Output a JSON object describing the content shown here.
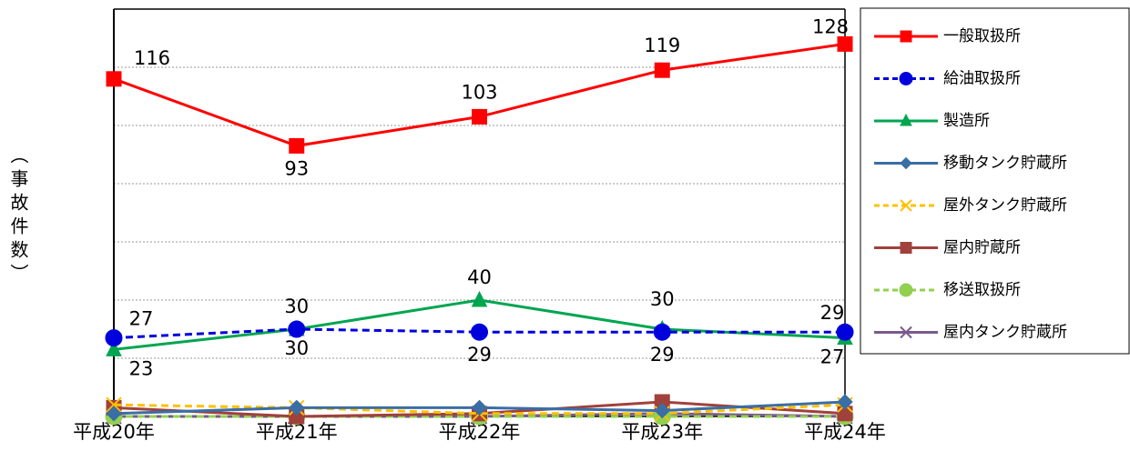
{
  "chart_data": {
    "type": "line",
    "y_label": "（事故件数）",
    "categories": [
      "平成20年",
      "平成21年",
      "平成22年",
      "平成23年",
      "平成24年"
    ],
    "ylim": [
      0,
      140
    ],
    "yticks": [
      0,
      20,
      40,
      60,
      80,
      100,
      120,
      140
    ],
    "grid": true,
    "legend": "right",
    "series": [
      {
        "name": "一般取扱所",
        "color": "#ff0000",
        "marker": "square",
        "dash": false,
        "labels": true,
        "values": [
          116,
          93,
          103,
          119,
          128
        ]
      },
      {
        "name": "給油取扱所",
        "color": "#0000dd",
        "marker": "circle",
        "dash": true,
        "labels": true,
        "values": [
          27,
          30,
          29,
          29,
          29
        ]
      },
      {
        "name": "製造所",
        "color": "#00a550",
        "marker": "triangle",
        "dash": false,
        "labels": true,
        "values": [
          23,
          30,
          40,
          30,
          27
        ]
      },
      {
        "name": "移動タンク貯蔵所",
        "color": "#3a6ea5",
        "marker": "diamond",
        "dash": false,
        "labels": false,
        "values": [
          1,
          3,
          3,
          2,
          5
        ]
      },
      {
        "name": "屋外タンク貯蔵所",
        "color": "#ffc000",
        "marker": "x",
        "dash": true,
        "labels": false,
        "values": [
          4,
          3,
          1,
          1,
          4
        ]
      },
      {
        "name": "屋内貯蔵所",
        "color": "#a0413c",
        "marker": "square",
        "dash": false,
        "labels": false,
        "values": [
          3,
          0,
          1,
          5,
          1
        ]
      },
      {
        "name": "移送取扱所",
        "color": "#92d050",
        "marker": "circle",
        "dash": true,
        "labels": false,
        "values": [
          0,
          0,
          0,
          0,
          0
        ]
      },
      {
        "name": "屋内タンク貯蔵所",
        "color": "#7a5a8c",
        "marker": "x",
        "dash": false,
        "labels": false,
        "values": [
          0,
          0,
          0,
          1,
          0
        ]
      }
    ]
  }
}
